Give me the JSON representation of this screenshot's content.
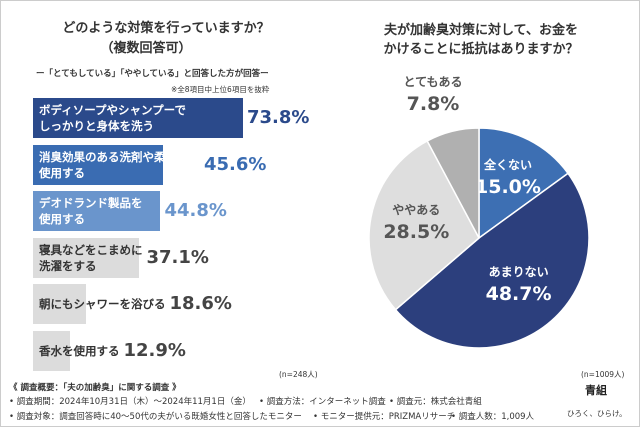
{
  "chart_data": [
    {
      "type": "bar",
      "title": "どのような対策を行っていますか？",
      "subtitle": "（複数回答可）",
      "annotations": [
        "ー「とてもしている」「ややしている」と回答した方が回答ー",
        "※全8項目中上位6項目を抜粋"
      ],
      "categories": [
        "ボディソープやシャンプーで\nしっかりと身体を洗う",
        "消臭効果のある洗剤や柔軟剤を\n使用する",
        "デオドランド製品を\n使用する",
        "寝具などをこまめに\n洗濯をする",
        "朝にもシャワーを浴びる",
        "香水を使用する"
      ],
      "values": [
        73.8,
        45.6,
        44.8,
        37.1,
        18.6,
        12.9
      ],
      "value_labels": [
        "73.8%",
        "45.6%",
        "44.8%",
        "37.1%",
        "18.6%",
        "12.9%"
      ],
      "colors": [
        "#2b4a8b",
        "#3a6cb2",
        "#6a95cc",
        "#dcdcdc",
        "#dcdcdc",
        "#dcdcdc"
      ],
      "note": "(n=248人)"
    },
    {
      "type": "pie",
      "title": "夫が加齢臭対策に対して、お金を\nかけることに抵抗はありますか？",
      "categories": [
        "全くない",
        "あまりない",
        "ややある",
        "とてもある"
      ],
      "values": [
        15.0,
        48.7,
        28.5,
        7.8
      ],
      "value_labels": [
        "15.0%",
        "48.7%",
        "28.5%",
        "7.8%"
      ],
      "colors": [
        "#3d6fb3",
        "#2c3f7d",
        "#dedede",
        "#b0b0b0"
      ],
      "note": "(n=1009人)"
    }
  ],
  "footer": {
    "heading": "《 調査概要：「夫の加齢臭」に関する調査 》",
    "lines": [
      "• 調査期間：2024年10月31日（木）～2024年11月1日（金）",
      "• 調査方法：インターネット調査",
      "• 調査元：株式会社青組",
      "• 調査対象：調査回答時に40〜50代の夫がいる既婚女性と回答したモニター",
      "• モニター提供元：PRIZMAリサーチ",
      "• 調査人数：1,009人"
    ]
  },
  "brand": {
    "name": "青組",
    "tagline": "ひろく、ひらけ。"
  }
}
